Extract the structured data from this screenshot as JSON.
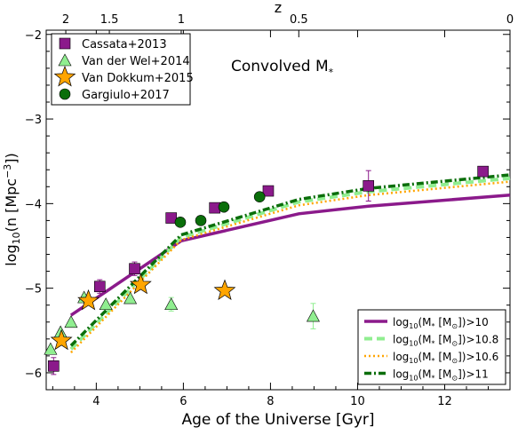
{
  "chart_data": {
    "type": "scatter",
    "title": "Convolved M",
    "title_subscript": "*",
    "xlabel": "Age of the Universe [Gyr]",
    "ylabel": "log",
    "ylabel_sub": "10",
    "ylabel_rest": "(n [Mpc",
    "ylabel_sup": "−3",
    "ylabel_end": "])",
    "top_axis_label": "z",
    "xlim": [
      2.85,
      13.5
    ],
    "ylim": [
      -6.2,
      -1.95
    ],
    "x_ticks": [
      4,
      6,
      8,
      10,
      12
    ],
    "x_tick_labels": [
      "4",
      "6",
      "8",
      "10",
      "12"
    ],
    "y_ticks": [
      -6,
      -5,
      -4,
      -3,
      -2
    ],
    "y_tick_labels": [
      "−6",
      "−5",
      "−4",
      "−3",
      "−2"
    ],
    "top_ticks": [
      {
        "label": "2",
        "age": 3.3
      },
      {
        "label": "1.5",
        "age": 4.3
      },
      {
        "label": "1",
        "age": 5.95
      },
      {
        "label": "0.5",
        "age": 8.65
      },
      {
        "label": "0",
        "age": 13.5
      }
    ],
    "series_points": [
      {
        "name": "Cassata+2013",
        "marker": "square",
        "color": "#8b1a8b",
        "points": [
          {
            "x": 3.02,
            "y": -5.92,
            "err": 0.1
          },
          {
            "x": 4.08,
            "y": -4.98,
            "err": 0.08
          },
          {
            "x": 4.88,
            "y": -4.77,
            "err": 0.08
          },
          {
            "x": 5.72,
            "y": -4.17,
            "err": 0.05
          },
          {
            "x": 6.72,
            "y": -4.05,
            "err": 0.05
          },
          {
            "x": 7.95,
            "y": -3.85,
            "err": 0.05
          },
          {
            "x": 10.25,
            "y": -3.79,
            "err": 0.18
          },
          {
            "x": 12.88,
            "y": -3.62,
            "err": 0.05
          }
        ]
      },
      {
        "name": "Van der Wel+2014",
        "marker": "triangle",
        "color": "#90ee90",
        "points": [
          {
            "x": 2.95,
            "y": -5.72,
            "err": 0
          },
          {
            "x": 3.18,
            "y": -5.52,
            "err": 0
          },
          {
            "x": 3.42,
            "y": -5.4,
            "err": 0
          },
          {
            "x": 3.72,
            "y": -5.11,
            "err": 0
          },
          {
            "x": 4.22,
            "y": -5.19,
            "err": 0
          },
          {
            "x": 4.78,
            "y": -5.12,
            "err": 0
          },
          {
            "x": 5.72,
            "y": -5.19,
            "err": 0.08
          },
          {
            "x": 8.98,
            "y": -5.33,
            "err": 0.15
          }
        ]
      },
      {
        "name": "Van Dokkum+2015",
        "marker": "star",
        "color": "#ffa500",
        "points": [
          {
            "x": 3.2,
            "y": -5.62
          },
          {
            "x": 3.82,
            "y": -5.15
          },
          {
            "x": 5.02,
            "y": -4.96
          },
          {
            "x": 6.95,
            "y": -5.03
          }
        ]
      },
      {
        "name": "Gargiulo+2017",
        "marker": "circle",
        "color": "#0a6e0a",
        "points": [
          {
            "x": 5.93,
            "y": -4.22
          },
          {
            "x": 6.4,
            "y": -4.2
          },
          {
            "x": 6.93,
            "y": -4.04
          },
          {
            "x": 7.75,
            "y": -3.92
          }
        ]
      }
    ],
    "series_lines": [
      {
        "name": "log10(M* [M☉])>10",
        "legend_pre": "log",
        "legend_sub": "10",
        "legend_post": "(M",
        "legend_star": "*",
        "legend_mid": " [M",
        "legend_sun": "⊙",
        "legend_end": "])>10",
        "style": "solid",
        "color": "#8b1a8b",
        "points": [
          [
            3.42,
            -5.32
          ],
          [
            5.95,
            -4.44
          ],
          [
            8.65,
            -4.12
          ],
          [
            10.25,
            -4.03
          ],
          [
            13.5,
            -3.9
          ]
        ]
      },
      {
        "name": "log10(M* [M☉])>10.8",
        "legend_pre": "log",
        "legend_sub": "10",
        "legend_post": "(M",
        "legend_star": "*",
        "legend_mid": " [M",
        "legend_sun": "⊙",
        "legend_end": "])>10.8",
        "style": "dashed",
        "color": "#90ee90",
        "points": [
          [
            3.42,
            -5.72
          ],
          [
            5.95,
            -4.4
          ],
          [
            8.65,
            -3.98
          ],
          [
            10.25,
            -3.86
          ],
          [
            13.5,
            -3.7
          ]
        ]
      },
      {
        "name": "log10(M* [M☉])>10.6",
        "legend_pre": "log",
        "legend_sub": "10",
        "legend_post": "(M",
        "legend_star": "*",
        "legend_mid": " [M",
        "legend_sun": "⊙",
        "legend_end": "])>10.6",
        "style": "dotted",
        "color": "#ffa500",
        "points": [
          [
            3.42,
            -5.76
          ],
          [
            5.95,
            -4.43
          ],
          [
            8.65,
            -4.02
          ],
          [
            10.25,
            -3.9
          ],
          [
            13.5,
            -3.74
          ]
        ]
      },
      {
        "name": "log10(M* [M☉])>11",
        "legend_pre": "log",
        "legend_sub": "10",
        "legend_post": "(M",
        "legend_star": "*",
        "legend_mid": " [M",
        "legend_sun": "⊙",
        "legend_end": "])>11",
        "style": "dashdot",
        "color": "#0a6e0a",
        "points": [
          [
            3.42,
            -5.68
          ],
          [
            5.95,
            -4.37
          ],
          [
            8.65,
            -3.95
          ],
          [
            10.25,
            -3.82
          ],
          [
            13.5,
            -3.66
          ]
        ]
      }
    ],
    "legend_points_placement": "top-left",
    "legend_lines_placement": "bottom-right",
    "grid": false
  }
}
